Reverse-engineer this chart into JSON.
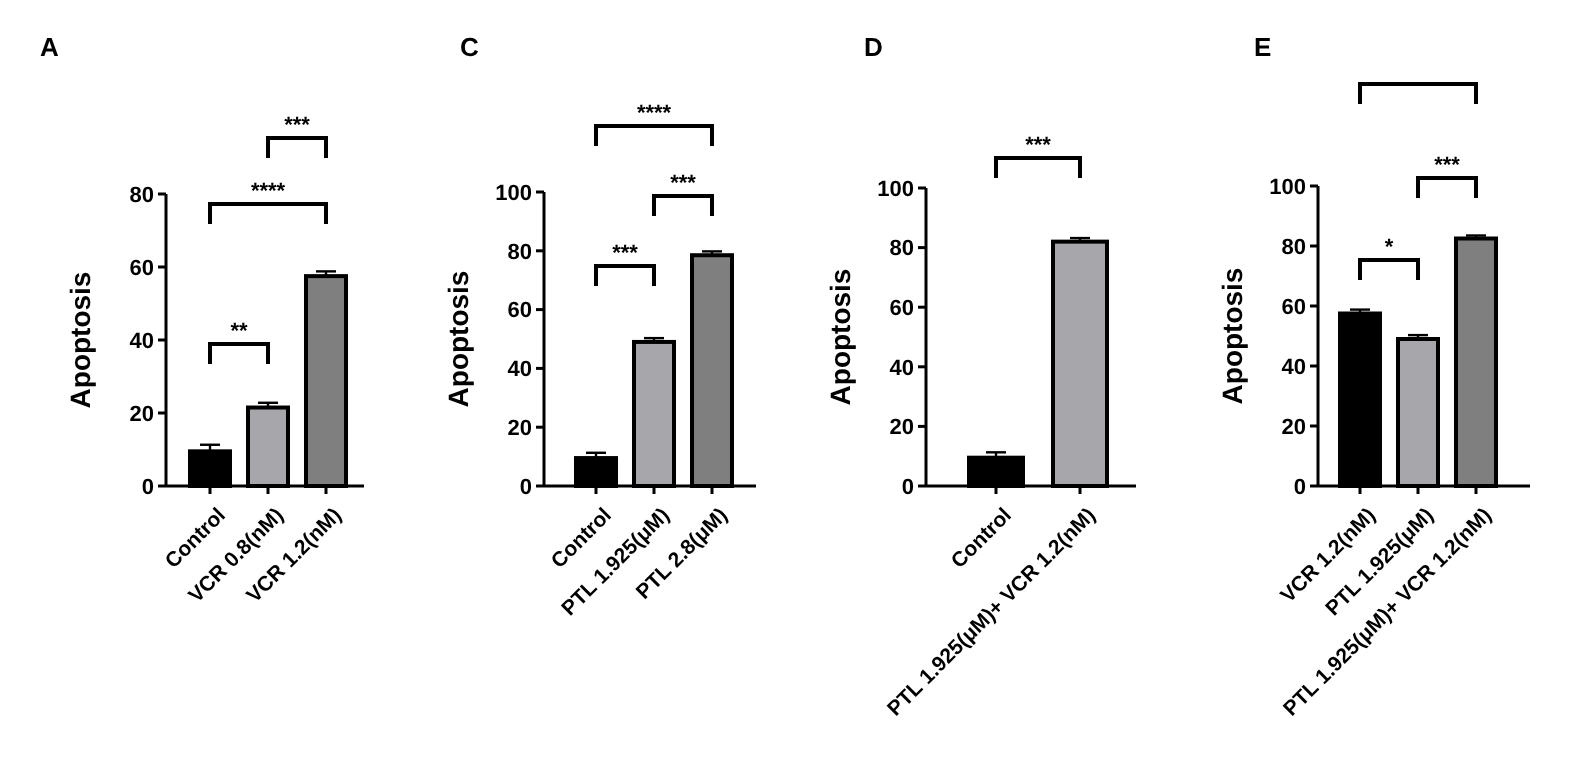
{
  "chart_data": [
    {
      "type": "bar",
      "title": "A",
      "ylabel": "Apoptosis",
      "categories": [
        "Control",
        "VCR 0.8(nM)",
        "VCR 1.2(nM)"
      ],
      "values": [
        9.5,
        21.5,
        57.5
      ],
      "errors": [
        1.8,
        1.3,
        1.3
      ],
      "colors": [
        "#000000",
        "#a6a6ab",
        "#7f7f7f"
      ],
      "ylim": [
        0,
        80
      ],
      "yticks": [
        0,
        20,
        40,
        60,
        80
      ],
      "annotations": [
        "**",
        "***",
        "****"
      ]
    },
    {
      "type": "bar",
      "title": "C",
      "ylabel": "Apoptosis",
      "categories": [
        "Control",
        "PTL 1.925(μM)",
        "PTL 2.8(μM)"
      ],
      "values": [
        9.5,
        49,
        78.5
      ],
      "errors": [
        1.8,
        1.3,
        1.3
      ],
      "colors": [
        "#000000",
        "#a6a6ab",
        "#7f7f7f"
      ],
      "ylim": [
        0,
        100
      ],
      "yticks": [
        0,
        20,
        40,
        60,
        80,
        100
      ],
      "annotations": [
        "***",
        "***",
        "****"
      ]
    },
    {
      "type": "bar",
      "title": "D",
      "ylabel": "Apoptosis",
      "categories": [
        "Control",
        "PTL 1.925(μM)+ VCR 1.2(nM)"
      ],
      "values": [
        9.5,
        82
      ],
      "errors": [
        1.8,
        1.2
      ],
      "colors": [
        "#000000",
        "#a6a6ab"
      ],
      "ylim": [
        0,
        100
      ],
      "yticks": [
        0,
        20,
        40,
        60,
        80,
        100
      ],
      "annotations": [
        "***"
      ]
    },
    {
      "type": "bar",
      "title": "E",
      "ylabel": "Apoptosis",
      "categories": [
        "VCR 1.2(nM)",
        "PTL 1.925(μM)",
        "PTL 1.925(μM)+ VCR 1.2(nM)"
      ],
      "values": [
        57.5,
        49,
        82.5
      ],
      "errors": [
        1.3,
        1.3,
        1
      ],
      "colors": [
        "#000000",
        "#a6a6ab",
        "#7f7f7f"
      ],
      "ylim": [
        0,
        100
      ],
      "yticks": [
        0,
        20,
        40,
        60,
        80,
        100
      ],
      "annotations": [
        "*",
        "***"
      ]
    }
  ]
}
